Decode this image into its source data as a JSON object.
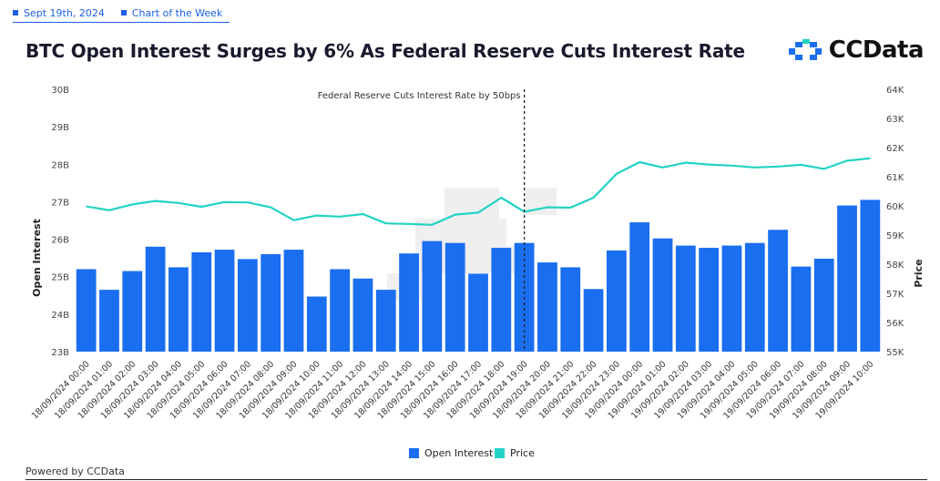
{
  "header": {
    "date": "Sept 19th, 2024",
    "series_name": "Chart of the Week",
    "accent": "#1d5fe6"
  },
  "title": "BTC Open Interest Surges by 6% As Federal Reserve Cuts Interest Rate",
  "logo": {
    "text": "CCData",
    "icon": "ccdata-logo-icon"
  },
  "footer": {
    "powered_by": "Powered by CCData"
  },
  "chart_data": {
    "type": "bar",
    "title": "BTC Open Interest Surges by 6% As Federal Reserve Cuts Interest Rate",
    "xlabel": "",
    "ylabel": "Open Interest",
    "y2label": "Price",
    "ylim": [
      23,
      30
    ],
    "y2lim": [
      55,
      64
    ],
    "y_ticks": [
      "23B",
      "24B",
      "25B",
      "26B",
      "27B",
      "28B",
      "29B",
      "30B"
    ],
    "y2_ticks": [
      "55K",
      "56K",
      "57K",
      "58K",
      "59K",
      "60K",
      "61K",
      "62K",
      "63K",
      "64K"
    ],
    "grid": false,
    "legend": "bottom",
    "annotation": {
      "label": "Federal Reserve Cuts Interest Rate by 50bps",
      "category": "18/09/2024 19:00"
    },
    "categories": [
      "18/09/2024 00:00",
      "18/09/2024 01:00",
      "18/09/2024 02:00",
      "18/09/2024 03:00",
      "18/09/2024 04:00",
      "18/09/2024 05:00",
      "18/09/2024 06:00",
      "18/09/2024 07:00",
      "18/09/2024 08:00",
      "18/09/2024 09:00",
      "18/09/2024 10:00",
      "18/09/2024 11:00",
      "18/09/2024 12:00",
      "18/09/2024 13:00",
      "18/09/2024 14:00",
      "18/09/2024 15:00",
      "18/09/2024 16:00",
      "18/09/2024 17:00",
      "18/09/2024 18:00",
      "18/09/2024 19:00",
      "18/09/2024 20:00",
      "18/09/2024 21:00",
      "18/09/2024 22:00",
      "18/09/2024 23:00",
      "19/09/2024 00:00",
      "19/09/2024 01:00",
      "19/09/2024 02:00",
      "19/09/2024 03:00",
      "19/09/2024 04:00",
      "19/09/2024 05:00",
      "19/09/2024 06:00",
      "19/09/2024 07:00",
      "19/09/2024 08:00",
      "19/09/2024 09:00",
      "19/09/2024 10:00"
    ],
    "series": [
      {
        "name": "Open Interest",
        "axis": "left",
        "kind": "bar",
        "color": "#1a6ef0",
        "values": [
          25.2,
          24.65,
          25.15,
          25.8,
          25.25,
          25.65,
          25.72,
          25.47,
          25.6,
          25.72,
          24.47,
          25.2,
          24.95,
          24.65,
          25.62,
          25.95,
          25.9,
          25.08,
          25.77,
          25.9,
          25.38,
          25.25,
          24.67,
          25.7,
          26.45,
          26.02,
          25.83,
          25.77,
          25.83,
          25.9,
          26.25,
          25.27,
          25.48,
          26.9,
          27.05
        ]
      },
      {
        "name": "Price",
        "axis": "right",
        "kind": "line",
        "color": "#22d3c5",
        "values": [
          59.98,
          59.85,
          60.05,
          60.17,
          60.1,
          59.97,
          60.13,
          60.12,
          59.95,
          59.51,
          59.67,
          59.63,
          59.72,
          59.4,
          59.38,
          59.35,
          59.7,
          59.77,
          60.28,
          59.8,
          59.95,
          59.94,
          60.28,
          61.1,
          61.5,
          61.32,
          61.48,
          61.42,
          61.38,
          61.32,
          61.35,
          61.41,
          61.27,
          61.55,
          61.63
        ]
      }
    ]
  }
}
